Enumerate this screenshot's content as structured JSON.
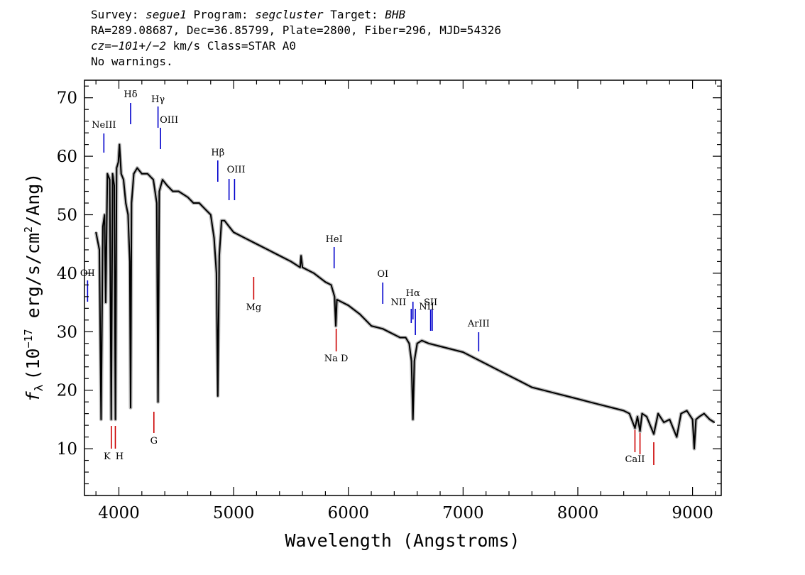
{
  "header": {
    "survey_label": "Survey:",
    "survey": "segue1",
    "program_label": "Program:",
    "program": "segcluster",
    "target_label": "Target:",
    "target": "BHB",
    "line2": "RA=289.08687, Dec=36.85799, Plate=2800, Fiber=296, MJD=54326",
    "cz_label": "cz=",
    "cz_value": "−101+/−2",
    "cz_rest": " km/s Class=STAR A0",
    "line4": "No warnings."
  },
  "chart_data": {
    "type": "line",
    "xlabel": "Wavelength (Angstroms)",
    "ylabel_parts": [
      "(10",
      "−17",
      " erg/s/cm",
      "2",
      "/Ang)"
    ],
    "ylabel_symbol": "f",
    "ylabel_sub": "λ",
    "xlim": [
      3700,
      9250
    ],
    "ylim": [
      2,
      73
    ],
    "xticks": [
      4000,
      5000,
      6000,
      7000,
      8000,
      9000
    ],
    "yticks": [
      10,
      20,
      30,
      40,
      50,
      60,
      70
    ],
    "xtick_labels": [
      "4000",
      "5000",
      "6000",
      "7000",
      "8000",
      "9000"
    ],
    "ytick_labels": [
      "10",
      "20",
      "30",
      "40",
      "50",
      "60",
      "70"
    ],
    "colors": {
      "spectrum": "#000000",
      "error": "#b8b8b8",
      "emission": "#0000cc",
      "absorption": "#cc0000"
    },
    "series": [
      {
        "x": [
          3800,
          3830,
          3845,
          3860,
          3875,
          3885,
          3900,
          3920,
          3933,
          3945,
          3960,
          3970,
          3980,
          3995,
          4005,
          4020,
          4040,
          4060,
          4080,
          4095,
          4102,
          4110,
          4130,
          4160,
          4200,
          4250,
          4300,
          4330,
          4341,
          4352,
          4380,
          4420,
          4470,
          4520,
          4600,
          4650,
          4700,
          4750,
          4800,
          4830,
          4850,
          4862,
          4875,
          4895,
          4920,
          4960,
          5000,
          5100,
          5200,
          5300,
          5400,
          5500,
          5580,
          5588,
          5600,
          5700,
          5800,
          5850,
          5880,
          5890,
          5900,
          5950,
          6000,
          6100,
          6150,
          6200,
          6300,
          6350,
          6400,
          6450,
          6500,
          6530,
          6550,
          6563,
          6575,
          6600,
          6640,
          6700,
          6800,
          6900,
          7000,
          7100,
          7200,
          7300,
          7400,
          7500,
          7600,
          7700,
          7800,
          7900,
          8000,
          8100,
          8200,
          8300,
          8400,
          8450,
          8498,
          8520,
          8542,
          8560,
          8600,
          8662,
          8700,
          8750,
          8800,
          8862,
          8900,
          8950,
          9000,
          9015,
          9030,
          9060,
          9100,
          9150,
          9190
        ],
        "y": [
          47,
          44,
          15,
          48,
          50,
          35,
          57,
          56,
          15,
          57,
          55,
          15,
          58,
          59,
          62,
          57,
          56,
          52,
          50,
          42,
          17,
          52,
          57,
          58,
          57,
          57,
          56,
          52,
          18,
          54,
          56,
          55,
          54,
          54,
          53,
          52,
          52,
          51,
          50,
          46,
          40,
          19,
          43,
          49,
          49,
          48,
          47,
          46,
          45,
          44,
          43,
          42,
          41,
          43,
          41,
          40,
          38.5,
          38,
          36,
          31,
          35.5,
          35,
          34.5,
          33,
          32,
          31,
          30.5,
          30,
          29.5,
          29,
          29,
          28,
          25,
          15,
          25,
          28,
          28.5,
          28,
          27.5,
          27,
          26.5,
          25.5,
          24.5,
          23.5,
          22.5,
          21.5,
          20.5,
          20,
          19.5,
          19,
          18.5,
          18,
          17.5,
          17,
          16.5,
          16,
          13.5,
          15.5,
          13,
          16,
          15.5,
          12.5,
          16,
          14.5,
          15,
          12,
          16,
          16.5,
          15,
          10,
          15,
          15.5,
          16,
          15,
          14.5
        ]
      }
    ],
    "line_labels": [
      {
        "name": "NeIII",
        "x": 3869,
        "kind": "emission"
      },
      {
        "name": "Hδ",
        "x": 4102,
        "kind": "emission"
      },
      {
        "name": "Hγ",
        "x": 4341,
        "kind": "emission"
      },
      {
        "name": "OIII",
        "x": 4363,
        "kind": "emission"
      },
      {
        "name": "Hβ",
        "x": 4862,
        "kind": "emission"
      },
      {
        "name": "OIII",
        "x": 4960,
        "kind": "emission"
      },
      {
        "name": "OIII",
        "x": 5008,
        "kind": "emission"
      },
      {
        "name": "HeI",
        "x": 5876,
        "kind": "emission"
      },
      {
        "name": "OI",
        "x": 6300,
        "kind": "emission"
      },
      {
        "name": "NII",
        "x": 6548,
        "kind": "emission"
      },
      {
        "name": "Hα",
        "x": 6563,
        "kind": "emission"
      },
      {
        "name": "NII",
        "x": 6584,
        "kind": "emission"
      },
      {
        "name": "SII",
        "x": 6717,
        "kind": "emission"
      },
      {
        "name": "SII",
        "x": 6731,
        "kind": "emission"
      },
      {
        "name": "ArIII",
        "x": 7136,
        "kind": "emission"
      },
      {
        "name": "OII",
        "x": 3727,
        "kind": "emission"
      },
      {
        "name": "K",
        "x": 3934,
        "kind": "absorption"
      },
      {
        "name": "H",
        "x": 3969,
        "kind": "absorption"
      },
      {
        "name": "G",
        "x": 4305,
        "kind": "absorption"
      },
      {
        "name": "Mg",
        "x": 5175,
        "kind": "absorption"
      },
      {
        "name": "Na D",
        "x": 5894,
        "kind": "absorption"
      },
      {
        "name": "CaII",
        "x": 8498,
        "kind": "absorption"
      },
      {
        "name": "CaII",
        "x": 8542,
        "kind": "absorption"
      },
      {
        "name": "CaII",
        "x": 8662,
        "kind": "absorption"
      }
    ]
  }
}
